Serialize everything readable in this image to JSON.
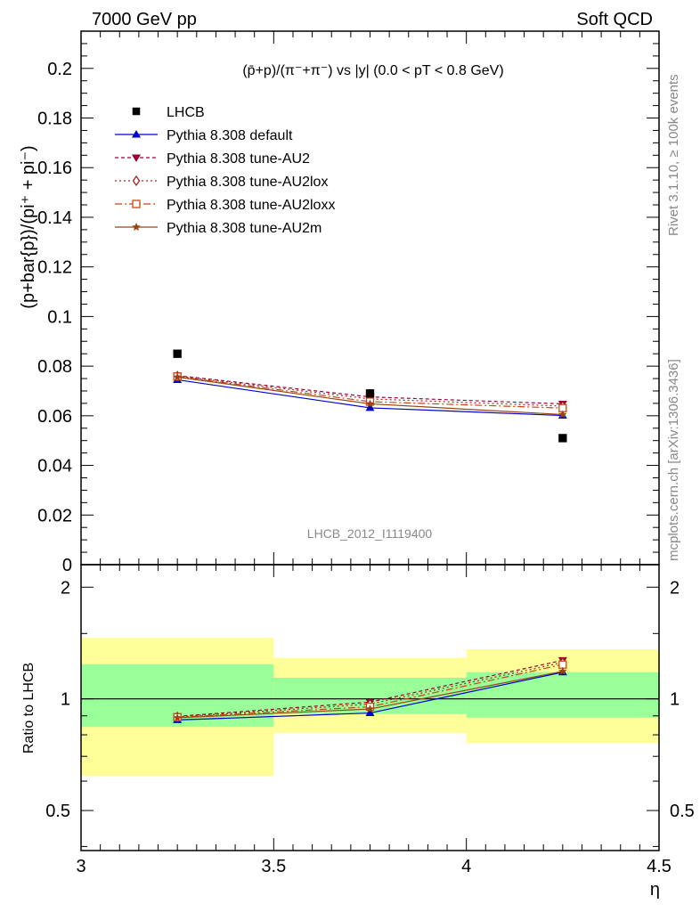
{
  "header": {
    "left": "7000 GeV pp",
    "right": "Soft QCD"
  },
  "side_labels": {
    "rivet": "Rivet 3.1.10, ≥ 100k events",
    "mcplots": "mcplots.cern.ch [arXiv:1306.3436]"
  },
  "chart_data": {
    "type": "line",
    "title": "(p̄+p)/(π⁻+π⁻) vs |y| (0.0 < pT < 0.8 GeV)",
    "watermark": "LHCB_2012_I1119400",
    "xlabel": "η",
    "ylabel": "(p+bar{p})/(pi⁺ + pi⁻)",
    "ratio_ylabel": "Ratio to LHCB",
    "xlim": [
      3,
      4.5
    ],
    "ylim": [
      0,
      0.215
    ],
    "ratio_ylim": [
      0.39,
      2.3
    ],
    "ratio_scale": "log",
    "x_ticks": [
      "3",
      "3.5",
      "4",
      "4.5"
    ],
    "y_ticks": [
      "0",
      "0.02",
      "0.04",
      "0.06",
      "0.08",
      "0.1",
      "0.12",
      "0.14",
      "0.16",
      "0.18",
      "0.2"
    ],
    "ratio_ticks": [
      "0.5",
      "1",
      "2"
    ],
    "data": {
      "name": "LHCB",
      "x": [
        3.25,
        3.75,
        4.25
      ],
      "y": [
        0.085,
        0.069,
        0.051
      ],
      "x_bins": [
        [
          3.0,
          3.5
        ],
        [
          3.5,
          4.0
        ],
        [
          4.0,
          4.5
        ]
      ],
      "band_inner": [
        [
          0.84,
          1.24
        ],
        [
          0.91,
          1.14
        ],
        [
          0.89,
          1.18
        ]
      ],
      "band_outer": [
        [
          0.62,
          1.46
        ],
        [
          0.81,
          1.29
        ],
        [
          0.76,
          1.36
        ]
      ]
    },
    "series": [
      {
        "name": "Pythia 8.308 default",
        "color": "#0000cc",
        "dash": "",
        "marker": "triangle-up",
        "y": [
          0.0745,
          0.0632,
          0.0601
        ],
        "ratio": [
          0.877,
          0.916,
          1.18
        ]
      },
      {
        "name": "Pythia 8.308 tune-AU2",
        "color": "#990033",
        "dash": "4,3",
        "marker": "triangle-down",
        "y": [
          0.0762,
          0.0676,
          0.0648
        ],
        "ratio": [
          0.897,
          0.98,
          1.27
        ]
      },
      {
        "name": "Pythia 8.308 tune-AU2lox",
        "color": "#aa2222",
        "dash": "2,3",
        "marker": "diamond-open",
        "y": [
          0.076,
          0.0668,
          0.0639
        ],
        "ratio": [
          0.894,
          0.968,
          1.253
        ]
      },
      {
        "name": "Pythia 8.308 tune-AU2loxx",
        "color": "#cc4411",
        "dash": "8,3,2,3",
        "marker": "square-open",
        "y": [
          0.0758,
          0.0657,
          0.0631
        ],
        "ratio": [
          0.892,
          0.952,
          1.237
        ]
      },
      {
        "name": "Pythia 8.308 tune-AU2m",
        "color": "#994411",
        "dash": "",
        "marker": "star",
        "y": [
          0.0756,
          0.0648,
          0.0605
        ],
        "ratio": [
          0.889,
          0.939,
          1.186
        ]
      }
    ],
    "legend_position": "top-left"
  }
}
